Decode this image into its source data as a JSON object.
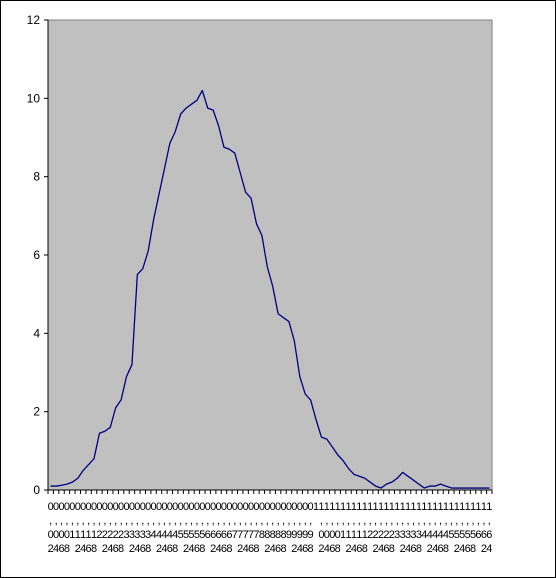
{
  "chart_data": {
    "type": "line",
    "title": "",
    "xlabel": "",
    "ylabel": "",
    "ylim": [
      0,
      12
    ],
    "yticks": [
      0,
      2,
      4,
      6,
      8,
      10,
      12
    ],
    "y_tick_labels": [
      "0",
      "2",
      "4",
      "6",
      "8",
      "10",
      "12"
    ],
    "grid": false,
    "legend": "none",
    "colors": {
      "plot_background": "#c0c0c0",
      "line": "#000080",
      "axis": "#000000"
    },
    "x": [
      0.02,
      0.04,
      0.06,
      0.08,
      0.1,
      0.12,
      0.14,
      0.16,
      0.18,
      0.2,
      0.22,
      0.24,
      0.26,
      0.28,
      0.3,
      0.32,
      0.34,
      0.36,
      0.38,
      0.4,
      0.42,
      0.44,
      0.46,
      0.48,
      0.5,
      0.52,
      0.54,
      0.56,
      0.58,
      0.6,
      0.62,
      0.64,
      0.66,
      0.68,
      0.7,
      0.72,
      0.74,
      0.76,
      0.78,
      0.8,
      0.82,
      0.84,
      0.86,
      0.88,
      0.9,
      0.92,
      0.94,
      0.96,
      0.98,
      1.0,
      1.02,
      1.04,
      1.06,
      1.08,
      1.1,
      1.12,
      1.14,
      1.16,
      1.18,
      1.2,
      1.22,
      1.24,
      1.26,
      1.28,
      1.3,
      1.32,
      1.34,
      1.36,
      1.38,
      1.4,
      1.42,
      1.44,
      1.46,
      1.48,
      1.5,
      1.52,
      1.54,
      1.56,
      1.58,
      1.6,
      1.62,
      1.64
    ],
    "x_tick_labels": [
      "0,02",
      "0,04",
      "0,06",
      "0,08",
      "0,1",
      "0,12",
      "0,14",
      "0,16",
      "0,18",
      "0,2",
      "0,22",
      "0,24",
      "0,26",
      "0,28",
      "0,3",
      "0,32",
      "0,34",
      "0,36",
      "0,38",
      "0,4",
      "0,42",
      "0,44",
      "0,46",
      "0,48",
      "0,5",
      "0,52",
      "0,54",
      "0,56",
      "0,58",
      "0,6",
      "0,62",
      "0,64",
      "0,66",
      "0,68",
      "0,7",
      "0,72",
      "0,74",
      "0,76",
      "0,78",
      "0,8",
      "0,82",
      "0,84",
      "0,86",
      "0,88",
      "0,9",
      "0,92",
      "0,94",
      "0,96",
      "0,98",
      "1",
      "1,02",
      "1,04",
      "1,06",
      "1,08",
      "1,1",
      "1,12",
      "1,14",
      "1,16",
      "1,18",
      "1,2",
      "1,22",
      "1,24",
      "1,26",
      "1,28",
      "1,3",
      "1,32",
      "1,34",
      "1,36",
      "1,38",
      "1,4",
      "1,42",
      "1,44",
      "1,46",
      "1,48",
      "1,5",
      "1,52",
      "1,54",
      "1,56",
      "1,58",
      "1,6",
      "1,62",
      "1,64"
    ],
    "series": [
      {
        "values": [
          0.1,
          0.1,
          0.12,
          0.15,
          0.2,
          0.3,
          0.5,
          0.65,
          0.8,
          1.45,
          1.5,
          1.6,
          2.1,
          2.3,
          2.9,
          3.2,
          5.5,
          5.65,
          6.1,
          6.9,
          7.55,
          8.2,
          8.85,
          9.15,
          9.6,
          9.75,
          9.85,
          9.95,
          10.2,
          9.75,
          9.7,
          9.3,
          8.75,
          8.7,
          8.6,
          8.1,
          7.6,
          7.45,
          6.8,
          6.5,
          5.7,
          5.2,
          4.5,
          4.4,
          4.3,
          3.8,
          2.9,
          2.45,
          2.3,
          1.8,
          1.35,
          1.3,
          1.1,
          0.9,
          0.75,
          0.55,
          0.4,
          0.35,
          0.3,
          0.2,
          0.1,
          0.05,
          0.15,
          0.2,
          0.3,
          0.45,
          0.35,
          0.25,
          0.15,
          0.05,
          0.1,
          0.1,
          0.15,
          0.1,
          0.05,
          0.05,
          0.05,
          0.05,
          0.05,
          0.05,
          0.05,
          0.05
        ]
      }
    ]
  }
}
